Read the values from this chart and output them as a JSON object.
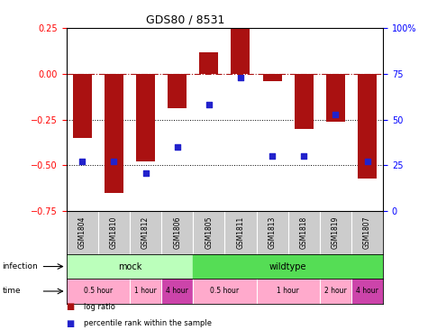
{
  "title": "GDS80 / 8531",
  "samples": [
    "GSM1804",
    "GSM1810",
    "GSM1812",
    "GSM1806",
    "GSM1805",
    "GSM1811",
    "GSM1813",
    "GSM1818",
    "GSM1819",
    "GSM1807"
  ],
  "log_ratio": [
    -0.35,
    -0.65,
    -0.48,
    -0.19,
    0.12,
    0.26,
    -0.04,
    -0.3,
    -0.26,
    -0.57
  ],
  "percentile": [
    27,
    27,
    21,
    35,
    58,
    73,
    30,
    30,
    53,
    27
  ],
  "ylim_left": [
    -0.75,
    0.25
  ],
  "ylim_right": [
    0,
    100
  ],
  "yticks_left": [
    -0.75,
    -0.5,
    -0.25,
    0,
    0.25
  ],
  "yticks_right": [
    0,
    25,
    50,
    75,
    100
  ],
  "hline_zero": 0,
  "hlines_dotted": [
    -0.25,
    -0.5
  ],
  "bar_color": "#AA1111",
  "dot_color": "#2222CC",
  "bar_width": 0.6,
  "infection_groups": [
    {
      "label": "mock",
      "start": 0,
      "end": 4,
      "color": "#BBFFBB"
    },
    {
      "label": "wildtype",
      "start": 4,
      "end": 10,
      "color": "#55DD55"
    }
  ],
  "time_groups": [
    {
      "label": "0.5 hour",
      "start": 0,
      "end": 2,
      "color": "#FFAACC"
    },
    {
      "label": "1 hour",
      "start": 2,
      "end": 3,
      "color": "#FFAACC"
    },
    {
      "label": "4 hour",
      "start": 3,
      "end": 4,
      "color": "#CC44AA"
    },
    {
      "label": "0.5 hour",
      "start": 4,
      "end": 6,
      "color": "#FFAACC"
    },
    {
      "label": "1 hour",
      "start": 6,
      "end": 8,
      "color": "#FFAACC"
    },
    {
      "label": "2 hour",
      "start": 8,
      "end": 9,
      "color": "#FFAACC"
    },
    {
      "label": "4 hour",
      "start": 9,
      "end": 10,
      "color": "#CC44AA"
    }
  ],
  "right_top_label": "100%",
  "legend_items": [
    {
      "label": "log ratio",
      "color": "#AA1111"
    },
    {
      "label": "percentile rank within the sample",
      "color": "#2222CC"
    }
  ]
}
